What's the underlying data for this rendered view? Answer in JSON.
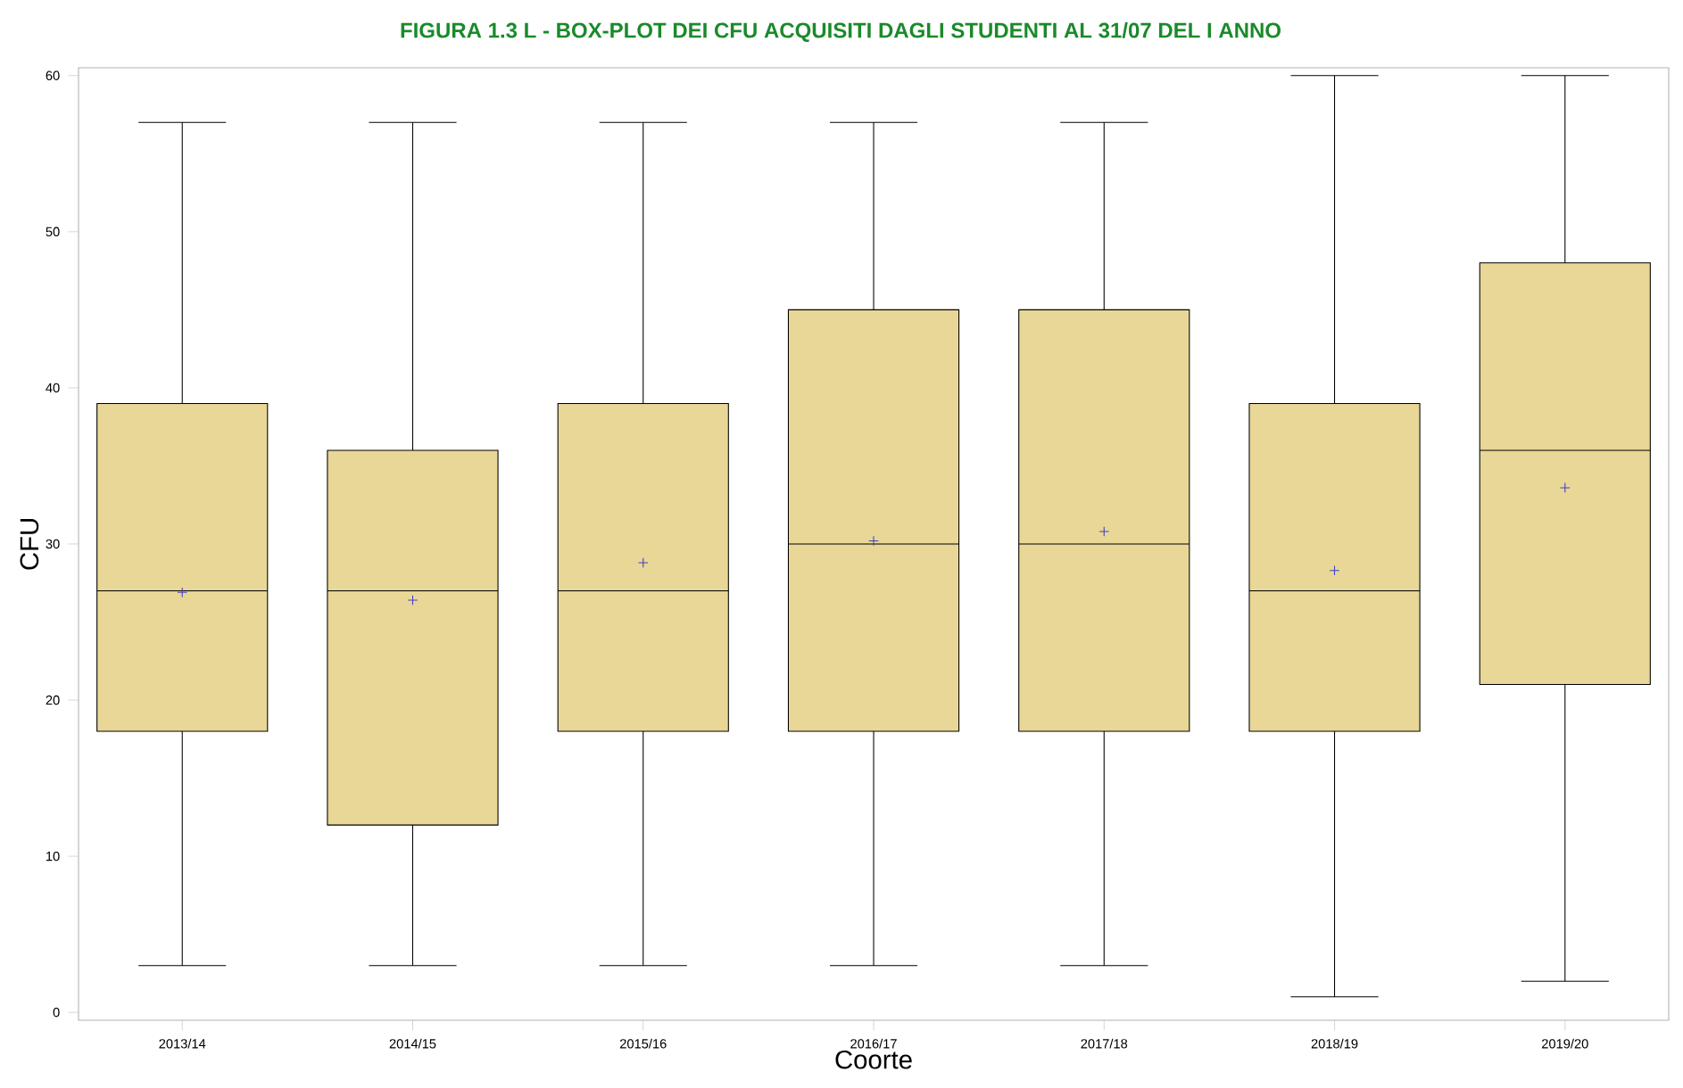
{
  "chart_data": {
    "type": "box",
    "title": "FIGURA 1.3 L - BOX-PLOT DEI CFU ACQUISITI DAGLI STUDENTI AL 31/07 DEL I ANNO",
    "xlabel": "Coorte",
    "ylabel": "CFU",
    "categories": [
      "2013/14",
      "2014/15",
      "2015/16",
      "2016/17",
      "2017/18",
      "2018/19",
      "2019/20"
    ],
    "color": "#e8d796",
    "boxes": [
      {
        "low": 3,
        "q1": 18,
        "median": 27,
        "q3": 39,
        "high": 57,
        "mean": 26.9
      },
      {
        "low": 3,
        "q1": 12,
        "median": 27,
        "q3": 36,
        "high": 57,
        "mean": 26.4
      },
      {
        "low": 3,
        "q1": 18,
        "median": 27,
        "q3": 39,
        "high": 57,
        "mean": 28.8
      },
      {
        "low": 3,
        "q1": 18,
        "median": 30,
        "q3": 45,
        "high": 57,
        "mean": 30.2
      },
      {
        "low": 3,
        "q1": 18,
        "median": 30,
        "q3": 45,
        "high": 57,
        "mean": 30.8
      },
      {
        "low": 1,
        "q1": 18,
        "median": 27,
        "q3": 39,
        "high": 60,
        "mean": 28.3
      },
      {
        "low": 2,
        "q1": 21,
        "median": 36,
        "q3": 48,
        "high": 60,
        "mean": 33.6
      }
    ],
    "ylim": [
      -0.5,
      60.5
    ],
    "yticks": [
      0,
      10,
      20,
      30,
      40,
      50,
      60
    ]
  }
}
